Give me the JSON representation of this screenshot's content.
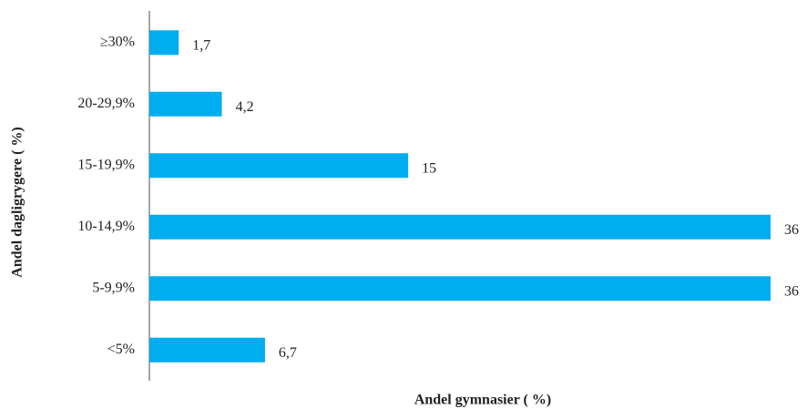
{
  "chart_data": {
    "type": "bar",
    "x_label": "Andel gymnasier ( %)",
    "y_label": "Andel dagligrygere ( %)",
    "categories": [
      "≥30%",
      "20-29,9%",
      "15-19,9%",
      "10-14,9%",
      "5-9,9%",
      "<5%"
    ],
    "values": [
      1.7,
      4.2,
      15,
      36,
      36,
      6.7
    ],
    "value_labels": [
      "1,7",
      "4,2",
      "15",
      "36",
      "36",
      "6,7"
    ],
    "color": "#00adef",
    "xlim": [
      0,
      36
    ]
  }
}
